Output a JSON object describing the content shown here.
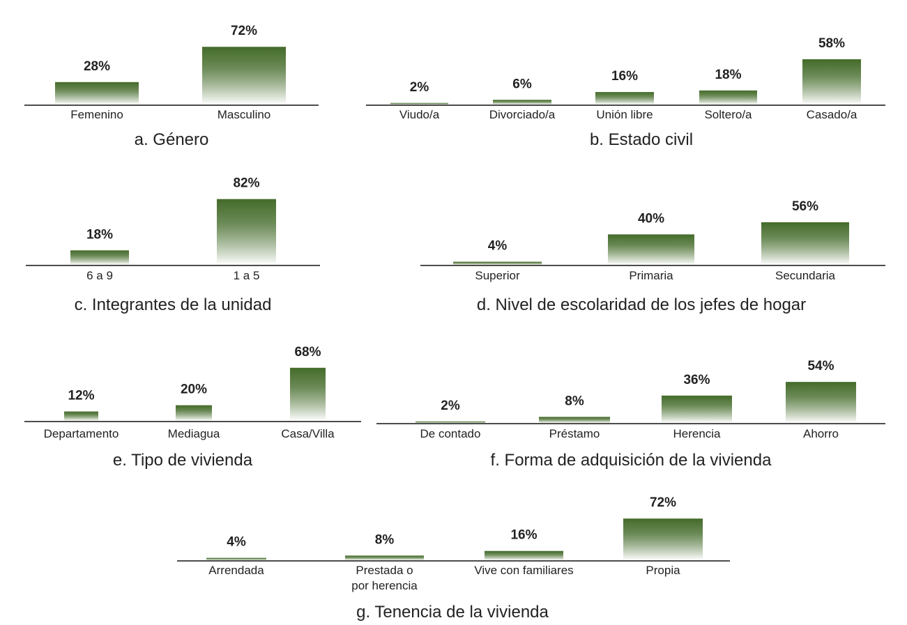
{
  "chart_data": [
    {
      "type": "bar",
      "title": "a. Género",
      "categories": [
        "Femenino",
        "Masculino"
      ],
      "values": [
        28,
        72
      ],
      "value_labels": [
        "28%",
        "72%"
      ],
      "unit": "%"
    },
    {
      "type": "bar",
      "title": "b. Estado civil",
      "categories": [
        "Viudo/a",
        "Divorciado/a",
        "Unión libre",
        "Soltero/a",
        "Casado/a"
      ],
      "values": [
        2,
        6,
        16,
        18,
        58
      ],
      "value_labels": [
        "2%",
        "6%",
        "16%",
        "18%",
        "58%"
      ],
      "unit": "%"
    },
    {
      "type": "bar",
      "title": "c. Integrantes de la unidad",
      "categories": [
        "6 a 9",
        "1 a 5"
      ],
      "values": [
        18,
        82
      ],
      "value_labels": [
        "18%",
        "82%"
      ],
      "unit": "%"
    },
    {
      "type": "bar",
      "title": "d. Nivel de escolaridad de los jefes de hogar",
      "categories": [
        "Superior",
        "Primaria",
        "Secundaria"
      ],
      "values": [
        4,
        40,
        56
      ],
      "value_labels": [
        "4%",
        "40%",
        "56%"
      ],
      "unit": "%"
    },
    {
      "type": "bar",
      "title": "e. Tipo de vivienda",
      "categories": [
        "Departamento",
        "Mediagua",
        "Casa/Villa"
      ],
      "values": [
        12,
        20,
        68
      ],
      "value_labels": [
        "12%",
        "20%",
        "68%"
      ],
      "unit": "%"
    },
    {
      "type": "bar",
      "title": "f. Forma de adquisición de la vivienda",
      "categories": [
        "De contado",
        "Préstamo",
        "Herencia",
        "Ahorro"
      ],
      "values": [
        2,
        8,
        36,
        54
      ],
      "value_labels": [
        "2%",
        "8%",
        "36%",
        "54%"
      ],
      "unit": "%"
    },
    {
      "type": "bar",
      "title": "g. Tenencia de la vivienda",
      "categories": [
        "Arrendada",
        "Prestada o\npor herencia",
        "Vive con familiares",
        "Propia"
      ],
      "values": [
        4,
        8,
        16,
        72
      ],
      "value_labels": [
        "4%",
        "8%",
        "16%",
        "72%"
      ],
      "unit": "%"
    }
  ],
  "colors": {
    "bar_top": "#446b2a",
    "bar_bottom": "#ffffff",
    "axis": "#111111"
  }
}
